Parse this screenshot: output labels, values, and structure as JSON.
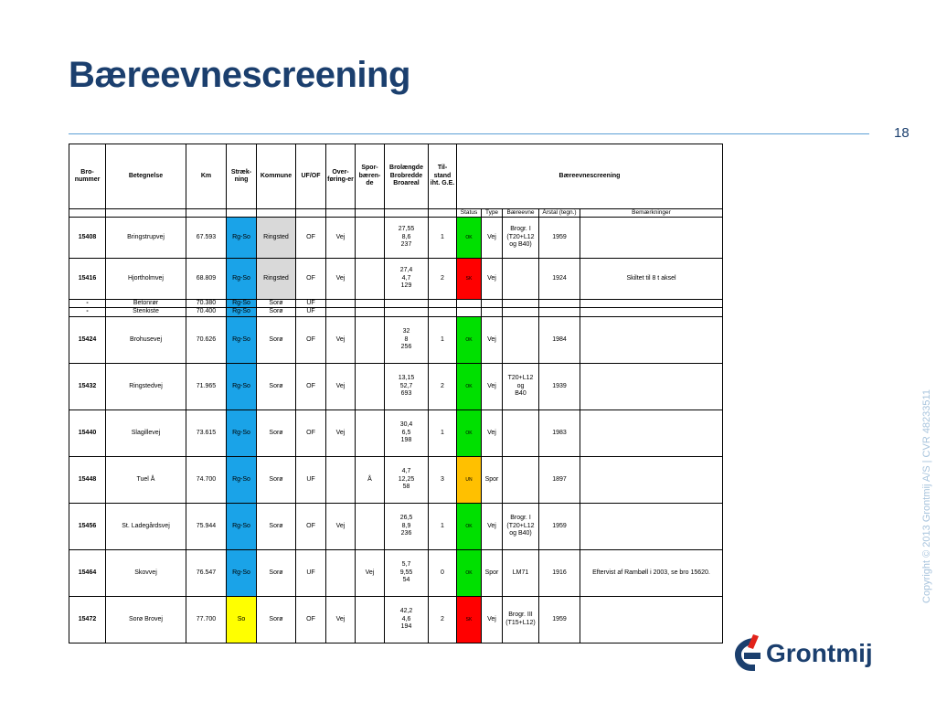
{
  "slide": {
    "title": "Bæreevnescreening",
    "page_number": "18",
    "copyright": "Copyright © 2013 Grontmij A/S | CVR 48233511",
    "logo_text": "Grontmij"
  },
  "colors": {
    "title": "#1b3f6e",
    "rule": "#5c9fd6",
    "rg_so": "#1aa3e8",
    "so": "#ffff00",
    "ok": "#00e000",
    "sk": "#ff0000",
    "un": "#ffc000",
    "ringsted": "#d9d9d9",
    "logo_red": "#e2231a"
  },
  "table": {
    "headers": {
      "bro_nummer": "Bro-\nnummer",
      "betegnelse": "Betegnelse",
      "km": "Km",
      "straek": "Stræk-\nning",
      "kommune": "Kommune",
      "uf_of": "UF/OF",
      "overforing": "Over-\nføring-er",
      "sporbaerende": "Spor-\nbæren-\nde",
      "brolaengde": "Brolængde\nBrobredde\nBroareal",
      "tilstand": "Til-stand\niht. G.E.",
      "baereevne": "Bæreevnescreening"
    },
    "subheaders": {
      "status": "Status",
      "type": "Type",
      "baereevne": "Bæreevne",
      "aarstal": "Årstal (tegn.)",
      "bemaerkninger": "Bemærkninger"
    },
    "rows": [
      {
        "nr": "15408",
        "betegnelse": "Bringstrupvej",
        "km": "67.593",
        "straek": "Rg-So",
        "kommune": "Ringsted",
        "ufof": "OF",
        "over": "Vej",
        "spor": "",
        "dims": "27,55\n8,6\n237",
        "tilstand": "1",
        "status": "OK",
        "type": "Vej",
        "baereevne": "Brogr. I\n(T20+L12\nog B40)",
        "aar": "1959",
        "bem": ""
      },
      {
        "nr": "15416",
        "betegnelse": "Hjortholmvej",
        "km": "68.809",
        "straek": "Rg-So",
        "kommune": "Ringsted",
        "ufof": "OF",
        "over": "Vej",
        "spor": "",
        "dims": "27,4\n4,7\n129",
        "tilstand": "2",
        "status": "SK",
        "type": "Vej",
        "baereevne": "",
        "aar": "1924",
        "bem": "Skiltet til 8 t aksel"
      },
      {
        "nr": "-",
        "betegnelse": "Betonrør",
        "km": "70.380",
        "straek": "Rg-So",
        "kommune": "Sorø",
        "ufof": "UF",
        "over": "",
        "spor": "",
        "dims": "",
        "tilstand": "",
        "status": "",
        "type": "",
        "baereevne": "",
        "aar": "",
        "bem": ""
      },
      {
        "nr": "-",
        "betegnelse": "Stenkiste",
        "km": "70.400",
        "straek": "Rg-So",
        "kommune": "Sorø",
        "ufof": "UF",
        "over": "",
        "spor": "",
        "dims": "",
        "tilstand": "",
        "status": "",
        "type": "",
        "baereevne": "",
        "aar": "",
        "bem": ""
      },
      {
        "nr": "15424",
        "betegnelse": "Brohusevej",
        "km": "70.626",
        "straek": "Rg-So",
        "kommune": "Sorø",
        "ufof": "OF",
        "over": "Vej",
        "spor": "",
        "dims": "32\n8\n256",
        "tilstand": "1",
        "status": "OK",
        "type": "Vej",
        "baereevne": "",
        "aar": "1984",
        "bem": ""
      },
      {
        "nr": "15432",
        "betegnelse": "Ringstedvej",
        "km": "71.965",
        "straek": "Rg-So",
        "kommune": "Sorø",
        "ufof": "OF",
        "over": "Vej",
        "spor": "",
        "dims": "13,15\n52,7\n693",
        "tilstand": "2",
        "status": "OK",
        "type": "Vej",
        "baereevne": "T20+L12 og\nB40",
        "aar": "1939",
        "bem": ""
      },
      {
        "nr": "15440",
        "betegnelse": "Slagillevej",
        "km": "73.615",
        "straek": "Rg-So",
        "kommune": "Sorø",
        "ufof": "OF",
        "over": "Vej",
        "spor": "",
        "dims": "30,4\n6,5\n198",
        "tilstand": "1",
        "status": "OK",
        "type": "Vej",
        "baereevne": "",
        "aar": "1983",
        "bem": ""
      },
      {
        "nr": "15448",
        "betegnelse": "Tuel Å",
        "km": "74.700",
        "straek": "Rg-So",
        "kommune": "Sorø",
        "ufof": "UF",
        "over": "",
        "spor": "Å",
        "dims": "4,7\n12,25\n58",
        "tilstand": "3",
        "status": "UN",
        "type": "Spor",
        "baereevne": "",
        "aar": "1897",
        "bem": ""
      },
      {
        "nr": "15456",
        "betegnelse": "St. Ladegårdsvej",
        "km": "75.944",
        "straek": "Rg-So",
        "kommune": "Sorø",
        "ufof": "OF",
        "over": "Vej",
        "spor": "",
        "dims": "26,5\n8,9\n236",
        "tilstand": "1",
        "status": "OK",
        "type": "Vej",
        "baereevne": "Brogr. I\n(T20+L12\nog B40)",
        "aar": "1959",
        "bem": ""
      },
      {
        "nr": "15464",
        "betegnelse": "Skovvej",
        "km": "76.547",
        "straek": "Rg-So",
        "kommune": "Sorø",
        "ufof": "UF",
        "over": "",
        "spor": "Vej",
        "dims": "5,7\n9,55\n54",
        "tilstand": "0",
        "status": "OK",
        "type": "Spor",
        "baereevne": "LM71",
        "aar": "1916",
        "bem": "Eftervist af Rambøll i 2003, se bro 15620."
      },
      {
        "nr": "15472",
        "betegnelse": "Sorø Brovej",
        "km": "77.700",
        "straek": "So",
        "kommune": "Sorø",
        "ufof": "OF",
        "over": "Vej",
        "spor": "",
        "dims": "42,2\n4,6\n194",
        "tilstand": "2",
        "status": "SK",
        "type": "Vej",
        "baereevne": "Brogr. III\n(T15+L12)",
        "aar": "1959",
        "bem": ""
      }
    ]
  }
}
